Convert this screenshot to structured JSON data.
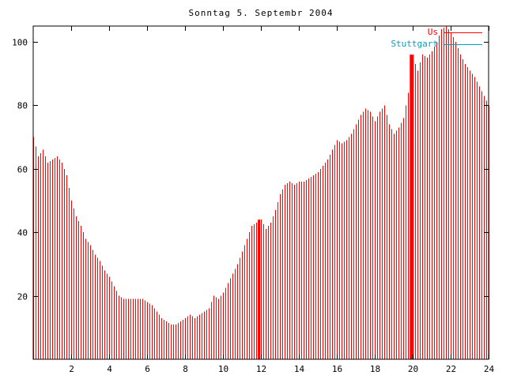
{
  "chart_data": {
    "type": "bar",
    "title": "Sonntag 5. Septembr 2004",
    "xlabel": "",
    "ylabel": "",
    "x_start": 0,
    "x_step": 0.25,
    "xlim": [
      0,
      24
    ],
    "ylim": [
      0,
      105
    ],
    "xticks": [
      2,
      4,
      6,
      8,
      10,
      12,
      14,
      16,
      18,
      20,
      22,
      24
    ],
    "yticks": [
      20,
      40,
      60,
      80,
      100
    ],
    "grid": false,
    "bar_color": "#ff0000",
    "axis_color": "#000000",
    "values": [
      70,
      64,
      66,
      62,
      63,
      64,
      62,
      58,
      50,
      45,
      42,
      38,
      36,
      33,
      31,
      28,
      26,
      23,
      20,
      19,
      19,
      19,
      19,
      19,
      18,
      17,
      15,
      13,
      12,
      11,
      11,
      12,
      13,
      14,
      13,
      14,
      15,
      16,
      20,
      19,
      21,
      24,
      27,
      30,
      34,
      38,
      42,
      43,
      44,
      41,
      43,
      47,
      52,
      55,
      56,
      55,
      56,
      56,
      57,
      58,
      59,
      61,
      63,
      66,
      69,
      68,
      69,
      71,
      74,
      77,
      79,
      78,
      75,
      78,
      80,
      74,
      71,
      73,
      76,
      84,
      95,
      91,
      96,
      95,
      97,
      100,
      104,
      105,
      103,
      100,
      96,
      93,
      91,
      89,
      86,
      83,
      80
    ],
    "spikes": [
      {
        "x": 11.9,
        "value": 44,
        "width": 3
      },
      {
        "x": 19.95,
        "value": 96,
        "width": 5
      }
    ],
    "legend": [
      {
        "label": "Us",
        "color": "#ff0000"
      },
      {
        "label": "Stuttgart",
        "color": "#00a0c0"
      }
    ],
    "legend_position": "top-right"
  }
}
